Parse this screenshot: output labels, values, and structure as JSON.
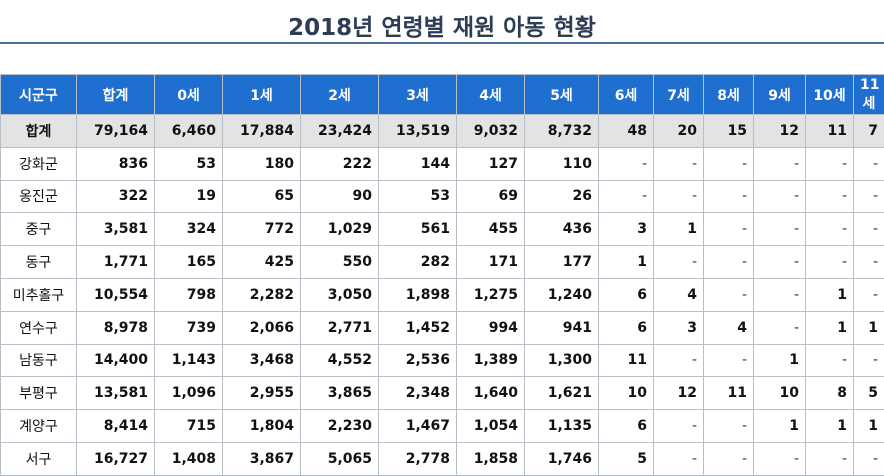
{
  "title": "2018년 연령별 재원 아동 현황",
  "table": {
    "headers": [
      "시군구",
      "합계",
      "0세",
      "1세",
      "2세",
      "3세",
      "4세",
      "5세",
      "6세",
      "7세",
      "8세",
      "9세",
      "10세",
      "11세"
    ],
    "rows": [
      [
        "합계",
        "79,164",
        "6,460",
        "17,884",
        "23,424",
        "13,519",
        "9,032",
        "8,732",
        "48",
        "20",
        "15",
        "12",
        "11",
        "7"
      ],
      [
        "강화군",
        "836",
        "53",
        "180",
        "222",
        "144",
        "127",
        "110",
        "-",
        "-",
        "-",
        "-",
        "-",
        "-"
      ],
      [
        "옹진군",
        "322",
        "19",
        "65",
        "90",
        "53",
        "69",
        "26",
        "-",
        "-",
        "-",
        "-",
        "-",
        "-"
      ],
      [
        "중구",
        "3,581",
        "324",
        "772",
        "1,029",
        "561",
        "455",
        "436",
        "3",
        "1",
        "-",
        "-",
        "-",
        "-"
      ],
      [
        "동구",
        "1,771",
        "165",
        "425",
        "550",
        "282",
        "171",
        "177",
        "1",
        "-",
        "-",
        "-",
        "-",
        "-"
      ],
      [
        "미추홀구",
        "10,554",
        "798",
        "2,282",
        "3,050",
        "1,898",
        "1,275",
        "1,240",
        "6",
        "4",
        "-",
        "-",
        "1",
        "-"
      ],
      [
        "연수구",
        "8,978",
        "739",
        "2,066",
        "2,771",
        "1,452",
        "994",
        "941",
        "6",
        "3",
        "4",
        "-",
        "1",
        "1"
      ],
      [
        "남동구",
        "14,400",
        "1,143",
        "3,468",
        "4,552",
        "2,536",
        "1,389",
        "1,300",
        "11",
        "-",
        "-",
        "1",
        "-",
        "-"
      ],
      [
        "부평구",
        "13,581",
        "1,096",
        "2,955",
        "3,865",
        "2,348",
        "1,640",
        "1,621",
        "10",
        "12",
        "11",
        "10",
        "8",
        "5"
      ],
      [
        "계양구",
        "8,414",
        "715",
        "1,804",
        "2,230",
        "1,467",
        "1,054",
        "1,135",
        "6",
        "-",
        "-",
        "1",
        "1",
        "1"
      ],
      [
        "서구",
        "16,727",
        "1,408",
        "3,867",
        "5,065",
        "2,778",
        "1,858",
        "1,746",
        "5",
        "-",
        "-",
        "-",
        "-",
        "-"
      ]
    ]
  }
}
